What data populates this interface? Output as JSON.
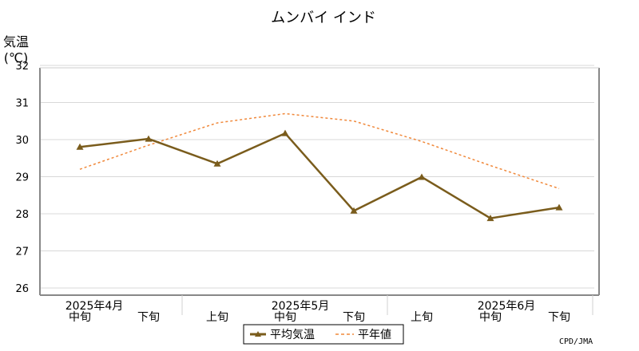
{
  "chart_data": {
    "type": "line",
    "title": "ムンバイ インド",
    "ylabel": [
      "気温",
      "(℃)"
    ],
    "ylim": [
      26,
      32
    ],
    "yticks": [
      26,
      27,
      28,
      29,
      30,
      31,
      32
    ],
    "grid": true,
    "categories": [
      "中旬",
      "下旬",
      "上旬",
      "中旬",
      "下旬",
      "上旬",
      "中旬",
      "下旬"
    ],
    "month_labels": [
      "2025年4月",
      "2025年5月",
      "2025年6月"
    ],
    "series": [
      {
        "name": "平均気温",
        "values": [
          29.8,
          30.02,
          29.35,
          30.17,
          28.08,
          28.99,
          27.88,
          28.17
        ],
        "color": "#7a5c1c",
        "style": "solid-triangle-markers"
      },
      {
        "name": "平年値",
        "values": [
          29.2,
          29.85,
          30.45,
          30.7,
          30.5,
          29.95,
          29.3,
          28.68
        ],
        "color": "#f0883a",
        "style": "dashed"
      }
    ],
    "legend_placement": "bottom-center",
    "credit": "CPD/JMA"
  }
}
